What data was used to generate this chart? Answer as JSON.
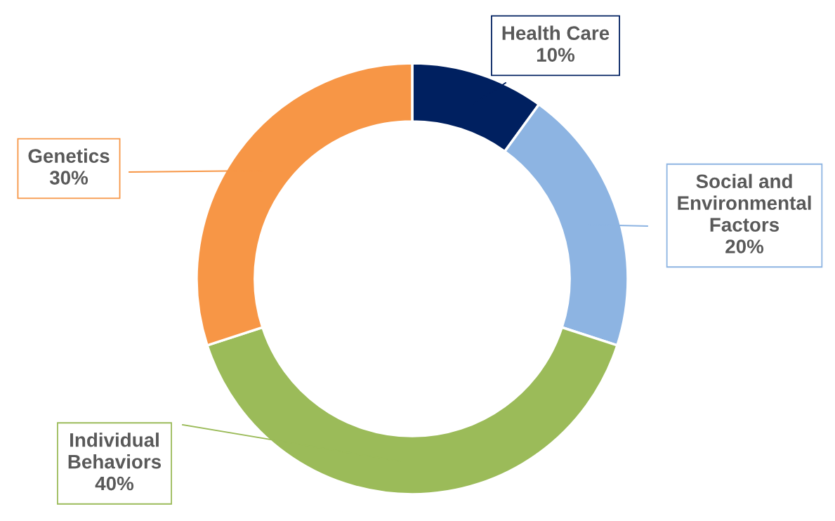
{
  "chart_data": {
    "type": "donut",
    "categories": [
      "Health Care",
      "Social and Environmental Factors",
      "Individual Behaviors",
      "Genetics"
    ],
    "values": [
      10,
      20,
      40,
      30
    ],
    "colors": [
      "#002060",
      "#8db4e2",
      "#9bbb59",
      "#f79646"
    ],
    "value_labels": [
      "10%",
      "20%",
      "40%",
      "30%"
    ]
  }
}
